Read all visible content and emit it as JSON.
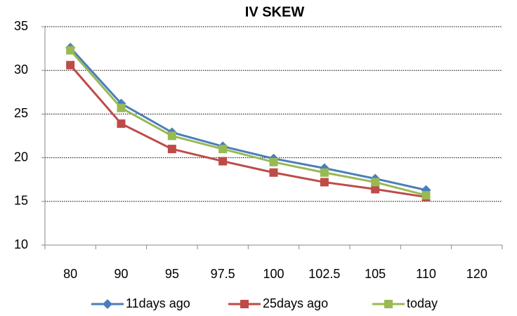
{
  "chart_data": {
    "type": "line",
    "title": "IV SKEW",
    "categories": [
      "80",
      "90",
      "95",
      "97.5",
      "100",
      "102.5",
      "105",
      "110",
      "120"
    ],
    "series": [
      {
        "name": "11days ago",
        "color": "#4a7ebb",
        "marker": "diamond",
        "values": [
          32.6,
          26.2,
          22.9,
          21.3,
          19.9,
          18.8,
          17.6,
          16.3,
          null
        ]
      },
      {
        "name": "25days ago",
        "color": "#be4b48",
        "marker": "square",
        "values": [
          30.6,
          23.9,
          21.0,
          19.6,
          18.3,
          17.2,
          16.4,
          15.5,
          null
        ]
      },
      {
        "name": "today",
        "color": "#98b954",
        "marker": "square",
        "values": [
          32.3,
          25.7,
          22.5,
          21.0,
          19.5,
          18.3,
          17.2,
          15.7,
          null
        ]
      }
    ],
    "ylim": [
      10,
      35
    ],
    "yticks": [
      10,
      15,
      20,
      25,
      30,
      35
    ],
    "grid": true,
    "legend": "bottom"
  }
}
